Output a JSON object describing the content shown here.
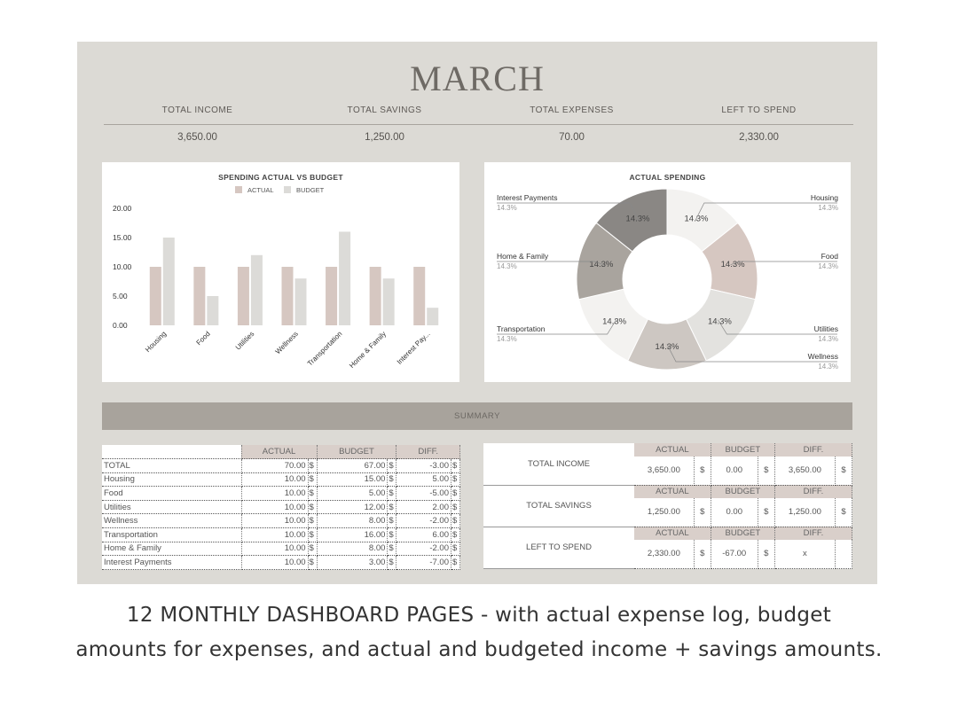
{
  "month": "MARCH",
  "kpis": [
    {
      "label": "TOTAL INCOME",
      "value": "3,650.00"
    },
    {
      "label": "TOTAL SAVINGS",
      "value": "1,250.00"
    },
    {
      "label": "TOTAL EXPENSES",
      "value": "70.00"
    },
    {
      "label": "LEFT TO SPEND",
      "value": "2,330.00"
    }
  ],
  "summary_label": "SUMMARY",
  "colors": {
    "actual": "#d6c7c1",
    "budget": "#dcdbd8",
    "sheet": "#dcdad5",
    "header": "#d9cfca"
  },
  "chart_data": [
    {
      "type": "bar",
      "title": "SPENDING ACTUAL VS BUDGET",
      "categories": [
        "Housing",
        "Food",
        "Utilities",
        "Wellness",
        "Transportation",
        "Home & Family",
        "Interest Pay..."
      ],
      "series": [
        {
          "name": "ACTUAL",
          "values": [
            10,
            10,
            10,
            10,
            10,
            10,
            10
          ]
        },
        {
          "name": "BUDGET",
          "values": [
            15,
            5,
            12,
            8,
            16,
            8,
            3
          ]
        }
      ],
      "yticks": [
        "0.00",
        "5.00",
        "10.00",
        "15.00",
        "20.00"
      ],
      "ylim": [
        0,
        20
      ],
      "legend": "top"
    },
    {
      "type": "pie",
      "title": "ACTUAL SPENDING",
      "slices": [
        {
          "label": "Housing",
          "value": 14.3,
          "pct": "14.3%",
          "color": "#f3f2f0"
        },
        {
          "label": "Food",
          "value": 14.3,
          "pct": "14.3%",
          "color": "#d6c7c1"
        },
        {
          "label": "Utilities",
          "value": 14.3,
          "pct": "14.3%",
          "color": "#e3e2df"
        },
        {
          "label": "Wellness",
          "value": 14.3,
          "pct": "14.3%",
          "color": "#cdc7c2"
        },
        {
          "label": "Transportation",
          "value": 14.3,
          "pct": "14.3%",
          "color": "#f3f2f0"
        },
        {
          "label": "Home & Family",
          "value": 14.3,
          "pct": "14.3%",
          "color": "#a9a49e"
        },
        {
          "label": "Interest Payments",
          "value": 14.3,
          "pct": "14.3%",
          "color": "#8a8784"
        }
      ]
    }
  ],
  "expense_table": {
    "headers": [
      "ACTUAL",
      "BUDGET",
      "DIFF."
    ],
    "currency": "$",
    "rows": [
      {
        "name": "TOTAL",
        "actual": "70.00",
        "budget": "67.00",
        "diff": "-3.00"
      },
      {
        "name": "Housing",
        "actual": "10.00",
        "budget": "15.00",
        "diff": "5.00"
      },
      {
        "name": "Food",
        "actual": "10.00",
        "budget": "5.00",
        "diff": "-5.00"
      },
      {
        "name": "Utilities",
        "actual": "10.00",
        "budget": "12.00",
        "diff": "2.00"
      },
      {
        "name": "Wellness",
        "actual": "10.00",
        "budget": "8.00",
        "diff": "-2.00"
      },
      {
        "name": "Transportation",
        "actual": "10.00",
        "budget": "16.00",
        "diff": "6.00"
      },
      {
        "name": "Home & Family",
        "actual": "10.00",
        "budget": "8.00",
        "diff": "-2.00"
      },
      {
        "name": "Interest Payments",
        "actual": "10.00",
        "budget": "3.00",
        "diff": "-7.00"
      }
    ]
  },
  "totals_table": {
    "headers": [
      "ACTUAL",
      "BUDGET",
      "DIFF."
    ],
    "currency": "$",
    "rows": [
      {
        "name": "TOTAL INCOME",
        "actual": "3,650.00",
        "budget": "0.00",
        "diff": "3,650.00",
        "diff_cur": "$"
      },
      {
        "name": "TOTAL SAVINGS",
        "actual": "1,250.00",
        "budget": "0.00",
        "diff": "1,250.00",
        "diff_cur": "$"
      },
      {
        "name": "LEFT TO SPEND",
        "actual": "2,330.00",
        "budget": "-67.00",
        "diff": "x",
        "diff_cur": ""
      }
    ]
  },
  "caption": {
    "line1": "12 MONTHLY DASHBOARD PAGES - with actual expense log, budget",
    "line2": "amounts for expenses, and actual and budgeted income + savings amounts."
  }
}
